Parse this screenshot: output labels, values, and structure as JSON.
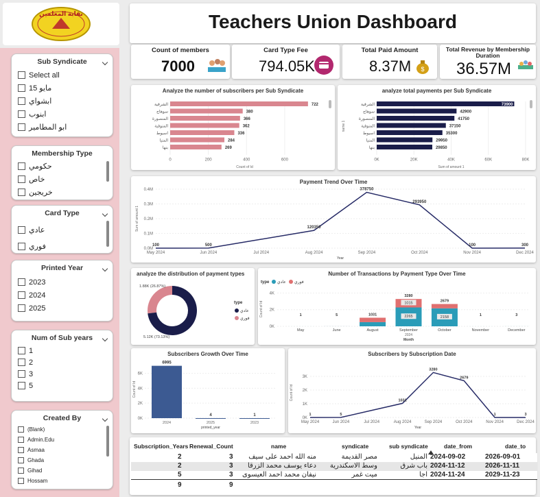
{
  "title": "Teachers Union Dashboard",
  "logo_text": "نقابة المعلمين",
  "slicers": {
    "sub_syndicate": {
      "title": "Sub Syndicate",
      "items": [
        "Select all",
        "15 مايو",
        "ابشواي",
        "ابنوب",
        "ابو المطامير"
      ]
    },
    "membership_type": {
      "title": "Membership Type",
      "items": [
        "حكومي",
        "خاص",
        "خريجين"
      ]
    },
    "card_type": {
      "title": "Card Type",
      "items": [
        "عادي",
        "فوري"
      ]
    },
    "printed_year": {
      "title": "Printed Year",
      "items": [
        "2023",
        "2024",
        "2025"
      ]
    },
    "num_sub_years": {
      "title": "Num of Sub years",
      "items": [
        "1",
        "2",
        "3",
        "5"
      ]
    },
    "created_by": {
      "title": "Created By",
      "items": [
        "(Blank)",
        "Admin.Edu",
        "Asmaa",
        "Ghada",
        "Gihad",
        "Hossam"
      ]
    }
  },
  "kpis": {
    "count_members": {
      "title": "Count of members",
      "value": "7000"
    },
    "card_type_fee": {
      "title": "Card Type Fee",
      "value": "794.05K"
    },
    "total_paid": {
      "title": "Total Paid Amount",
      "value": "8.37M"
    },
    "total_revenue": {
      "title": "Total Revenue by Membership Duration",
      "value": "36.57M"
    }
  },
  "colors": {
    "pink": "#d9868f",
    "navy": "#1a1d4a",
    "teal": "#2a9cb8",
    "salmon": "#e07070",
    "line": "#262a66",
    "bar_blue": "#3c5a92",
    "sidebar": "#f0c9cd"
  },
  "chart_data": [
    {
      "type": "bar",
      "title": "Analyze the number of subscribers per Sub Syndicate",
      "categories": [
        "الشرقية",
        "سوهاج",
        "المنصورة",
        "المنوفية",
        "اسيوط",
        "المنيا",
        "بنها"
      ],
      "values": [
        722,
        380,
        366,
        362,
        336,
        284,
        269
      ],
      "xlabel": "Count of Id",
      "xticks": [
        "0",
        "200",
        "400",
        "600"
      ],
      "xlim": [
        0,
        780
      ]
    },
    {
      "type": "bar",
      "title": "analyze total payments per Sub Syndicate",
      "categories": [
        "الشرقية",
        "سوهاج",
        "المنصورة",
        "المنوفية",
        "اسيوط",
        "المنيا",
        "بنها"
      ],
      "values": [
        73900,
        42900,
        41750,
        37150,
        35300,
        29950,
        29850
      ],
      "xlabel": "Sum of amount 1",
      "ylabel": "name 1",
      "xticks": [
        "0K",
        "20K",
        "40K",
        "60K",
        "80K"
      ],
      "xlim": [
        0,
        80000
      ]
    },
    {
      "type": "line",
      "title": "Payment Trend Over Time",
      "x": [
        "May 2024",
        "Jun 2024",
        "Jul 2024",
        "Aug 2024",
        "Sep 2024",
        "Oct 2024",
        "Nov 2024",
        "Dec 2024"
      ],
      "values": [
        100,
        500,
        null,
        120350,
        378750,
        293950,
        100,
        300
      ],
      "labels": [
        "100",
        "500",
        "",
        "120350",
        "378750",
        "293950",
        "100",
        "300"
      ],
      "xlabel": "Year",
      "ylabel": "Sum of amount 1",
      "yticks": [
        "0.0M",
        "0.1M",
        "0.2M",
        "0.3M",
        "0.4M"
      ],
      "ylim": [
        0,
        400000
      ]
    },
    {
      "type": "pie",
      "title": "analyze the distribution of payment types",
      "legend_title": "type",
      "series": [
        {
          "name": "عادي",
          "value": 73.13,
          "label": "5.12K (73.13%)"
        },
        {
          "name": "فوري",
          "value": 26.87,
          "label": "1.88K (26.87%)"
        }
      ]
    },
    {
      "type": "bar",
      "title": "Number of Transactions by Payment Type Over Time",
      "legend_title": "type",
      "categories": [
        "May",
        "June",
        "August",
        "September",
        "October",
        "November",
        "December"
      ],
      "sublabel": "2024",
      "series": [
        {
          "name": "عادي",
          "values": [
            1,
            4,
            500,
            2265,
            2158,
            1,
            3
          ]
        },
        {
          "name": "فوري",
          "values": [
            0,
            1,
            531,
            1015,
            521,
            0,
            0
          ]
        }
      ],
      "totals": [
        "1",
        "5",
        "1031",
        "3280",
        "2679",
        "1",
        "3"
      ],
      "segment_labels": [
        "",
        "",
        "",
        "2265",
        "2158",
        "",
        ""
      ],
      "top_labels": [
        "",
        "",
        "",
        "1015",
        "",
        "",
        ""
      ],
      "xlabel": "Month",
      "ylabel": "Count of Id",
      "yticks": [
        "0K",
        "2K",
        "4K"
      ],
      "ylim": [
        0,
        4200
      ]
    },
    {
      "type": "bar",
      "title": "Subscribers Growth Over Time",
      "categories": [
        "2024",
        "2025",
        "2023"
      ],
      "values": [
        6995,
        4,
        1
      ],
      "xlabel": "printed_year",
      "ylabel": "Count of Id",
      "yticks": [
        "0K",
        "2K",
        "4K",
        "6K"
      ],
      "ylim": [
        0,
        7600
      ]
    },
    {
      "type": "line",
      "title": "Subscribers by Subscription Date",
      "x": [
        "May 2024",
        "Jun 2024",
        "Jul 2024",
        "Aug 2024",
        "Sep 2024",
        "Oct 2024",
        "Nov 2024",
        "Dec 2024"
      ],
      "values": [
        1,
        5,
        null,
        1031,
        3280,
        2679,
        1,
        3
      ],
      "labels": [
        "1",
        "5",
        "",
        "1031",
        "3280",
        "2679",
        "1",
        "3"
      ],
      "xlabel": "Year",
      "ylabel": "Count of Id",
      "yticks": [
        "0K",
        "1K",
        "2K",
        "3K"
      ],
      "ylim": [
        0,
        3600
      ]
    }
  ],
  "table": {
    "headers": [
      "Subscription_Years",
      "Renewal_Count",
      "name",
      "syndicate",
      "sub syndicate",
      "date_from",
      "date_to"
    ],
    "rows": [
      [
        "2",
        "3",
        "منه الله احمد على سيف",
        "مصر القديمة",
        "المنيل",
        "2024-09-02",
        "2026-09-01"
      ],
      [
        "2",
        "3",
        "دعاء يوسف محمد الزرقا",
        "وسط الاسكندرية",
        "باب شرق",
        "2024-11-12",
        "2026-11-11"
      ],
      [
        "5",
        "3",
        "نيفان محمد احمد العيسوى",
        "ميت غمر",
        "اجا",
        "2024-11-24",
        "2029-11-23"
      ]
    ],
    "totals": [
      "9",
      "9"
    ]
  }
}
